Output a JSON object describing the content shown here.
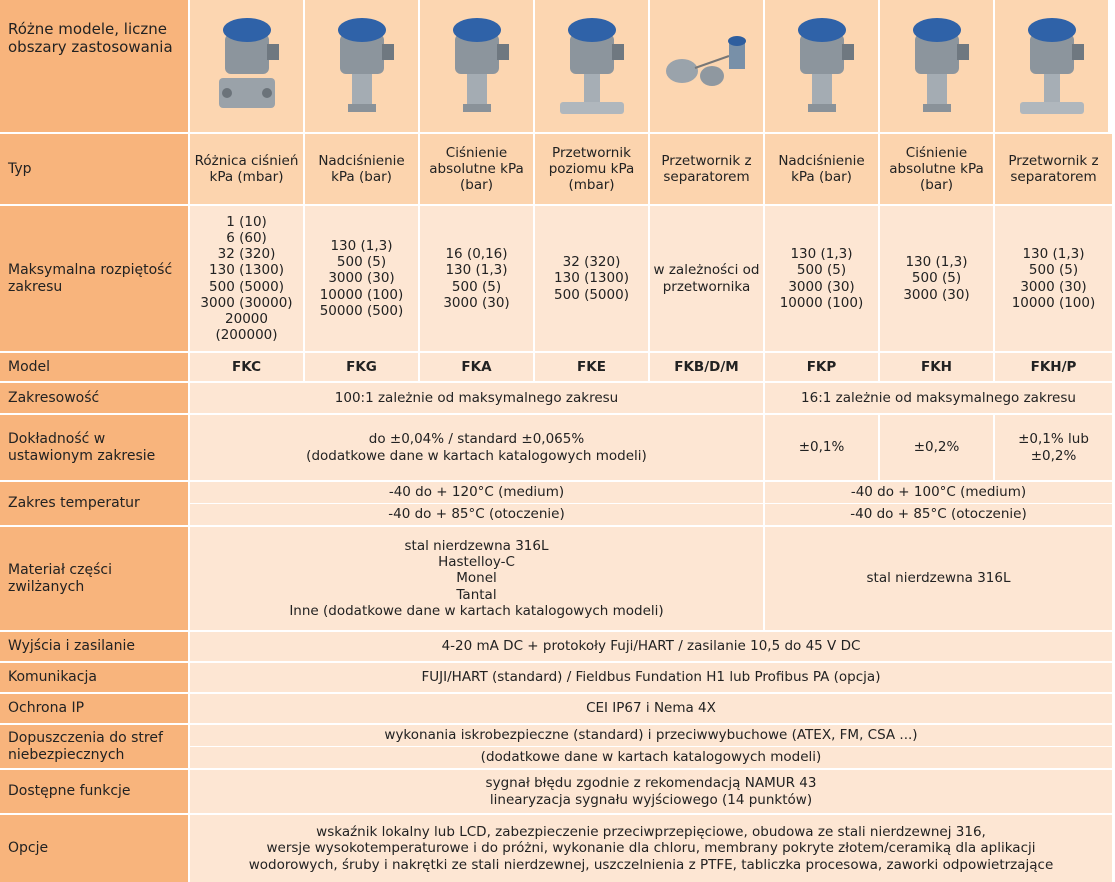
{
  "table": {
    "corner": "Różne modele, liczne obszary zastosowania",
    "rows": [
      {
        "label": "Typ",
        "cells": [
          "Różnica ciśnień kPa (mbar)",
          "Nadciśnienie kPa (bar)",
          "Ciśnienie absolutne kPa (bar)",
          "Przetwornik poziomu kPa (mbar)",
          "Przetwornik z separatorem",
          "Nadciśnienie kPa (bar)",
          "Ciśnienie absolutne kPa (bar)",
          "Przetwornik z separatorem"
        ]
      },
      {
        "label": "Maksymalna rozpiętość zakresu",
        "cells": [
          [
            "1 (10)",
            "6 (60)",
            "32 (320)",
            "130 (1300)",
            "500 (5000)",
            "3000 (30000)",
            "20000 (200000)"
          ],
          [
            "130 (1,3)",
            "500 (5)",
            "3000 (30)",
            "10000 (100)",
            "50000 (500)"
          ],
          [
            "16 (0,16)",
            "130 (1,3)",
            "500 (5)",
            "3000 (30)"
          ],
          [
            "32 (320)",
            "130 (1300)",
            "500 (5000)"
          ],
          "w zależności od przetwornika",
          [
            "130 (1,3)",
            "500 (5)",
            "3000 (30)",
            "10000 (100)"
          ],
          [
            "130 (1,3)",
            "500 (5)",
            "3000 (30)"
          ],
          [
            "130 (1,3)",
            "500 (5)",
            "3000 (30)",
            "10000 (100)"
          ]
        ]
      },
      {
        "label": "Model",
        "cells": [
          "FKC",
          "FKG",
          "FKA",
          "FKE",
          "FKB/D/M",
          "FKP",
          "FKH",
          "FKH/P"
        ]
      },
      {
        "label": "Zakresowość",
        "cells": [
          "100:1 zależnie od maksymalnego zakresu",
          "16:1 zależnie od maksymalnego zakresu"
        ]
      },
      {
        "label": "Dokładność w ustawionym zakresie",
        "cells": [
          [
            "do ±0,04% / standard ±0,065%",
            "(dodatkowe dane w kartach katalogowych modeli)"
          ],
          "±0,1%",
          "±0,2%",
          "±0,1% lub ±0,2%"
        ]
      },
      {
        "label": "Zakres temperatur",
        "cells": [
          [
            "-40 do + 120°C (medium)",
            "-40 do + 85°C (otoczenie)"
          ],
          [
            "-40 do + 100°C (medium)",
            "-40 do + 85°C (otoczenie)"
          ]
        ]
      },
      {
        "label": "Materiał części zwilżanych",
        "cells": [
          [
            "stal nierdzewna 316L",
            "Hastelloy-C",
            "Monel",
            "Tantal",
            "Inne (dodatkowe dane w kartach katalogowych modeli)"
          ],
          "stal nierdzewna 316L"
        ]
      },
      {
        "label": "Wyjścia i zasilanie",
        "cells": [
          "4-20 mA DC + protokoły Fuji/HART / zasilanie 10,5 do 45 V DC"
        ]
      },
      {
        "label": "Komunikacja",
        "cells": [
          "FUJI/HART (standard) / Fieldbus Fundation H1 lub Profibus PA (opcja)"
        ]
      },
      {
        "label": "Ochrona IP",
        "cells": [
          "CEI IP67 i Nema 4X"
        ]
      },
      {
        "label": "Dopuszczenia do stref niebezpiecznych",
        "cells": [
          [
            "wykonania iskrobezpieczne (standard) i przeciwwybuchowe (ATEX, FM, CSA ...)",
            "(dodatkowe dane w kartach katalogowych modeli)"
          ]
        ]
      },
      {
        "label": "Dostępne funkcje",
        "cells": [
          [
            "sygnał błędu zgodnie z rekomendacją NAMUR 43",
            "linearyzacja sygnału wyjściowego (14 punktów)"
          ]
        ]
      },
      {
        "label": "Opcje",
        "cells": [
          [
            "wskaźnik lokalny lub LCD, zabezpieczenie przeciwprzepięciowe, obudowa ze stali nierdzewnej 316,",
            "wersje wysokotemperaturowe i do próżni, wykonanie dla chloru, membrany pokryte złotem/ceramiką dla aplikacji",
            "wodorowych, śruby i nakrętki ze stali nierdzewnej, uszczelnienia z PTFE, tabliczka procesowa, zaworki odpowietrzające"
          ]
        ]
      }
    ]
  }
}
